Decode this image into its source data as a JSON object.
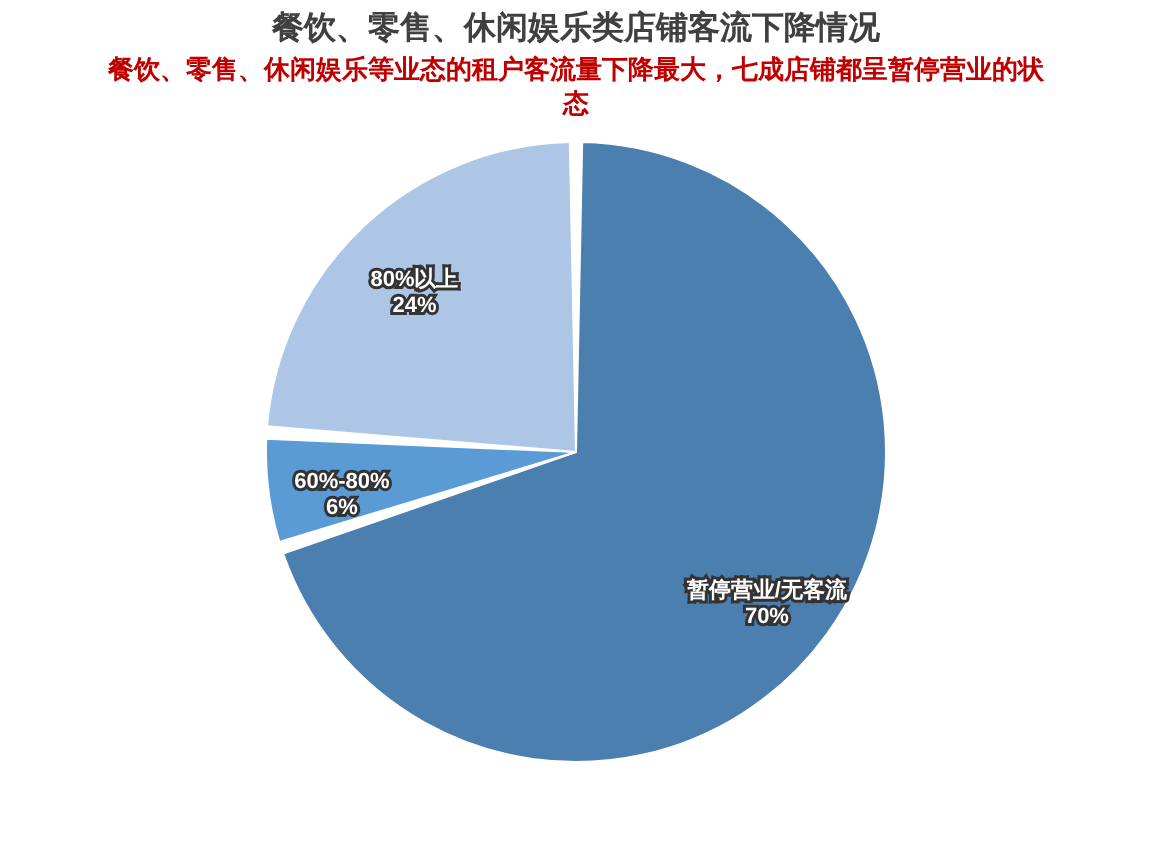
{
  "chart_data": {
    "type": "pie",
    "title": "餐饮、零售、休闲娱乐类店铺客流下降情况",
    "subtitle": "餐饮、零售、休闲娱乐等业态的租户客流量下降最大，七成店铺都呈暂停营业的状态",
    "categories": [
      "暂停营业/无客流",
      "60%-80%",
      "80%以上"
    ],
    "values": [
      70,
      6,
      24
    ],
    "colors": [
      "#4a7fb0",
      "#5b9bd5",
      "#adc6e6"
    ],
    "value_labels": [
      "70%",
      "6%",
      "24%"
    ],
    "legend": false
  }
}
